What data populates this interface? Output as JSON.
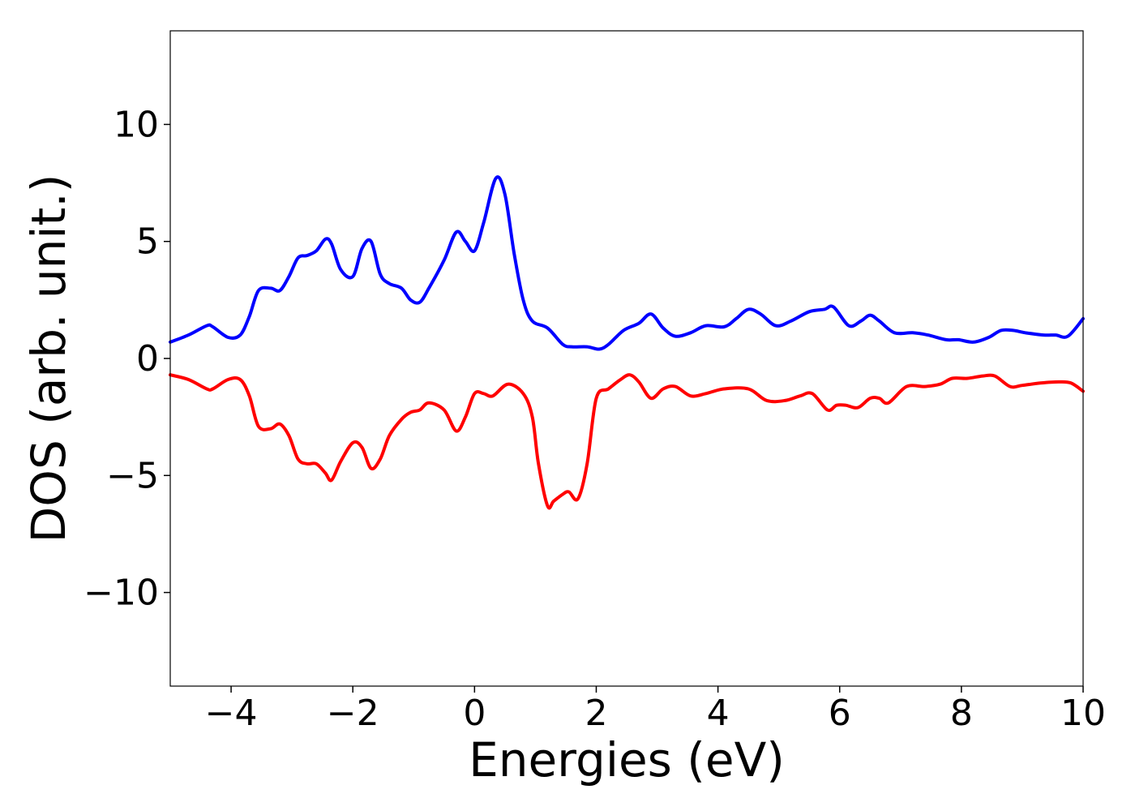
{
  "chart_data": {
    "type": "line",
    "title": "",
    "xlabel": "Energies (eV)",
    "ylabel": "DOS (arb. unit.)",
    "xlim": [
      -5,
      10
    ],
    "ylim": [
      -14,
      14
    ],
    "xticks": [
      -4,
      -2,
      0,
      2,
      4,
      6,
      8,
      10
    ],
    "xtick_labels": [
      "−4",
      "−2",
      "0",
      "2",
      "4",
      "6",
      "8",
      "10"
    ],
    "yticks": [
      -10,
      -5,
      0,
      5,
      10
    ],
    "ytick_labels": [
      "−10",
      "−5",
      "0",
      "5",
      "10"
    ],
    "grid": false,
    "legend": "none",
    "series": [
      {
        "color": "#0000ff",
        "x": [
          -5,
          -4.7,
          -4.4,
          -4.3,
          -4.05,
          -3.85,
          -3.7,
          -3.55,
          -3.35,
          -3.2,
          -3.05,
          -2.9,
          -2.75,
          -2.6,
          -2.45,
          -2.35,
          -2.2,
          -2.0,
          -1.85,
          -1.7,
          -1.55,
          -1.4,
          -1.2,
          -1.05,
          -0.9,
          -0.75,
          -0.5,
          -0.3,
          -0.15,
          0.0,
          0.15,
          0.35,
          0.5,
          0.65,
          0.8,
          0.95,
          1.2,
          1.45,
          1.6,
          1.85,
          2.05,
          2.2,
          2.45,
          2.7,
          2.9,
          3.1,
          3.3,
          3.55,
          3.8,
          4.1,
          4.3,
          4.5,
          4.7,
          4.95,
          5.2,
          5.5,
          5.75,
          5.9,
          6.15,
          6.35,
          6.5,
          6.65,
          6.9,
          7.2,
          7.45,
          7.75,
          7.95,
          8.2,
          8.45,
          8.65,
          8.85,
          9.05,
          9.35,
          9.55,
          9.75,
          10.0
        ],
        "y": [
          0.7,
          1.0,
          1.4,
          1.35,
          0.9,
          1.0,
          1.8,
          2.9,
          3.0,
          2.9,
          3.5,
          4.3,
          4.4,
          4.6,
          5.1,
          4.9,
          3.8,
          3.5,
          4.7,
          5.0,
          3.6,
          3.2,
          3.0,
          2.5,
          2.4,
          3.0,
          4.2,
          5.4,
          5.0,
          4.6,
          5.8,
          7.7,
          7.0,
          4.5,
          2.5,
          1.6,
          1.3,
          0.6,
          0.5,
          0.5,
          0.4,
          0.6,
          1.2,
          1.5,
          1.9,
          1.3,
          0.95,
          1.1,
          1.4,
          1.35,
          1.7,
          2.1,
          1.9,
          1.4,
          1.6,
          2.0,
          2.1,
          2.2,
          1.4,
          1.6,
          1.85,
          1.6,
          1.1,
          1.1,
          1.0,
          0.8,
          0.8,
          0.7,
          0.9,
          1.2,
          1.2,
          1.1,
          1.0,
          1.0,
          0.95,
          1.7
        ]
      },
      {
        "color": "#ff0000",
        "x": [
          -5,
          -4.7,
          -4.4,
          -4.3,
          -4.05,
          -3.85,
          -3.7,
          -3.55,
          -3.35,
          -3.2,
          -3.05,
          -2.9,
          -2.75,
          -2.6,
          -2.45,
          -2.35,
          -2.2,
          -2.0,
          -1.85,
          -1.7,
          -1.55,
          -1.4,
          -1.2,
          -1.05,
          -0.9,
          -0.75,
          -0.5,
          -0.3,
          -0.15,
          0.0,
          0.15,
          0.3,
          0.55,
          0.8,
          0.95,
          1.05,
          1.2,
          1.3,
          1.45,
          1.55,
          1.7,
          1.85,
          2.0,
          2.2,
          2.4,
          2.55,
          2.7,
          2.9,
          3.1,
          3.3,
          3.55,
          3.8,
          4.1,
          4.5,
          4.8,
          5.1,
          5.35,
          5.55,
          5.8,
          5.95,
          6.1,
          6.3,
          6.5,
          6.65,
          6.8,
          7.1,
          7.4,
          7.65,
          7.85,
          8.1,
          8.35,
          8.55,
          8.8,
          9.0,
          9.3,
          9.6,
          9.8,
          10.0
        ],
        "y": [
          -0.7,
          -0.9,
          -1.3,
          -1.3,
          -0.9,
          -0.9,
          -1.6,
          -2.9,
          -3.0,
          -2.8,
          -3.3,
          -4.3,
          -4.5,
          -4.5,
          -4.9,
          -5.2,
          -4.4,
          -3.6,
          -3.8,
          -4.7,
          -4.3,
          -3.3,
          -2.6,
          -2.3,
          -2.2,
          -1.9,
          -2.2,
          -3.1,
          -2.5,
          -1.5,
          -1.5,
          -1.6,
          -1.1,
          -1.5,
          -2.5,
          -4.5,
          -6.3,
          -6.1,
          -5.8,
          -5.7,
          -6.0,
          -4.5,
          -1.7,
          -1.3,
          -0.9,
          -0.7,
          -1.0,
          -1.7,
          -1.3,
          -1.2,
          -1.6,
          -1.5,
          -1.3,
          -1.3,
          -1.8,
          -1.8,
          -1.6,
          -1.5,
          -2.2,
          -2.0,
          -2.0,
          -2.1,
          -1.7,
          -1.7,
          -1.9,
          -1.2,
          -1.2,
          -1.1,
          -0.85,
          -0.85,
          -0.75,
          -0.75,
          -1.2,
          -1.15,
          -1.05,
          -1.0,
          -1.05,
          -1.4
        ]
      }
    ]
  }
}
